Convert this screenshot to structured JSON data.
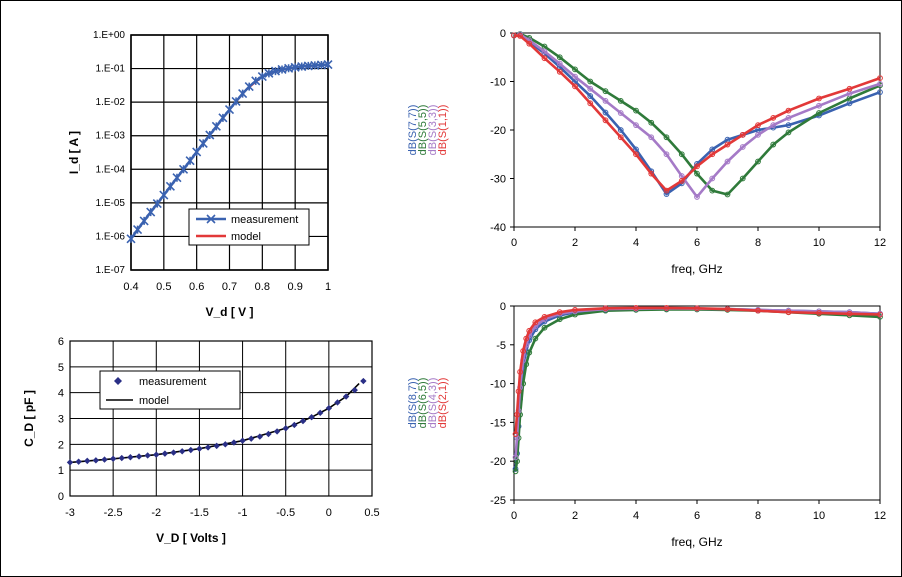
{
  "colors": {
    "s77": "#3a62b0",
    "s55": "#2f7a3a",
    "s33": "#a57ac7",
    "s11": "#e23838",
    "cap_marker": "#2a2f86",
    "model_black": "#000000",
    "frame": "#000000",
    "grid": "#000000"
  },
  "chart_data": [
    {
      "id": "iv",
      "type": "line",
      "xlabel": "V_d [ V ]",
      "ylabel": "I_d [ A ]",
      "xlim": [
        0.4,
        1.0
      ],
      "ylim": [
        1e-07,
        1.0
      ],
      "log_y": true,
      "grid": true,
      "x_ticks": [
        "0.4",
        "0.5",
        "0.6",
        "0.7",
        "0.8",
        "0.9",
        "1"
      ],
      "y_ticks": [
        "1.E-07",
        "1.E-06",
        "1.E-05",
        "1.E-04",
        "1.E-03",
        "1.E-02",
        "1.E-01",
        "1.E+00"
      ],
      "legend": {
        "placement": "bottom-right",
        "entries": [
          "measurement",
          "model"
        ]
      },
      "series": [
        {
          "name": "measurement",
          "marker": "x",
          "x": [
            0.4,
            0.42,
            0.44,
            0.46,
            0.48,
            0.5,
            0.52,
            0.54,
            0.56,
            0.58,
            0.6,
            0.62,
            0.64,
            0.66,
            0.68,
            0.7,
            0.72,
            0.74,
            0.76,
            0.78,
            0.8,
            0.82,
            0.84,
            0.86,
            0.88,
            0.9,
            0.92,
            0.94,
            0.96,
            0.98,
            1.0
          ],
          "y": [
            8.5e-07,
            1.6e-06,
            2.9e-06,
            5.3e-06,
            9.5e-06,
            1.7e-05,
            3.1e-05,
            5.6e-05,
            0.0001,
            0.00018,
            0.00033,
            0.00059,
            0.00105,
            0.0019,
            0.0034,
            0.006,
            0.0105,
            0.018,
            0.029,
            0.043,
            0.058,
            0.072,
            0.084,
            0.094,
            0.102,
            0.109,
            0.115,
            0.12,
            0.124,
            0.128,
            0.132
          ]
        },
        {
          "name": "model",
          "x": [
            0.4,
            0.45,
            0.5,
            0.55,
            0.6,
            0.65,
            0.7,
            0.75,
            0.8,
            0.85,
            0.9,
            0.95,
            1.0
          ],
          "y": [
            8.5e-07,
            4e-06,
            1.7e-05,
            7.5e-05,
            0.00033,
            0.0014,
            0.006,
            0.023,
            0.058,
            0.089,
            0.109,
            0.122,
            0.132
          ]
        }
      ]
    },
    {
      "id": "cv",
      "type": "scatter",
      "xlabel": "V_D [ Volts ]",
      "ylabel": "C_D [ pF ]",
      "xlim": [
        -3,
        0.5
      ],
      "ylim": [
        0,
        6
      ],
      "grid": true,
      "x_ticks": [
        "-3",
        "-2.5",
        "-2",
        "-1.5",
        "-1",
        "-0.5",
        "0",
        "0.5"
      ],
      "y_ticks": [
        "0",
        "1",
        "2",
        "3",
        "4",
        "5",
        "6"
      ],
      "legend": {
        "placement": "top-left",
        "entries": [
          "measurement",
          "model"
        ]
      },
      "series": [
        {
          "name": "measurement",
          "marker": "diamond",
          "x": [
            -3.0,
            -2.9,
            -2.8,
            -2.7,
            -2.6,
            -2.5,
            -2.4,
            -2.3,
            -2.2,
            -2.1,
            -2.0,
            -1.9,
            -1.8,
            -1.7,
            -1.6,
            -1.5,
            -1.4,
            -1.3,
            -1.2,
            -1.1,
            -1.0,
            -0.9,
            -0.8,
            -0.7,
            -0.6,
            -0.5,
            -0.4,
            -0.3,
            -0.2,
            -0.1,
            0.0,
            0.1,
            0.2,
            0.3,
            0.4
          ],
          "y": [
            1.3,
            1.33,
            1.36,
            1.38,
            1.41,
            1.44,
            1.47,
            1.5,
            1.53,
            1.57,
            1.6,
            1.64,
            1.68,
            1.73,
            1.78,
            1.83,
            1.88,
            1.94,
            2.0,
            2.07,
            2.14,
            2.22,
            2.3,
            2.4,
            2.5,
            2.62,
            2.75,
            2.9,
            3.05,
            3.22,
            3.4,
            3.62,
            3.85,
            4.1,
            4.45
          ]
        },
        {
          "name": "model",
          "x": [
            -3.0,
            -2.5,
            -2.0,
            -1.5,
            -1.0,
            -0.5,
            -0.2,
            0.0,
            0.2,
            0.35
          ],
          "y": [
            1.3,
            1.44,
            1.6,
            1.83,
            2.14,
            2.62,
            3.05,
            3.4,
            3.85,
            4.35
          ]
        }
      ]
    },
    {
      "id": "s_reflect",
      "type": "line",
      "xlabel": "freq, GHz",
      "ylabel": "",
      "xlim": [
        0,
        12
      ],
      "ylim": [
        -40,
        0
      ],
      "grid": false,
      "x_ticks": [
        "0",
        "2",
        "4",
        "6",
        "8",
        "10",
        "12"
      ],
      "y_ticks": [
        "-40",
        "-30",
        "-20",
        "-10",
        "0"
      ],
      "legend": {
        "placement": "left-vertical",
        "entries": [
          "dB(S(7,7))",
          "dB(S(5,5))",
          "dB(S(3,3))",
          "dB(S(1,1))"
        ]
      },
      "series": [
        {
          "name": "dB(S(7,7))",
          "x": [
            0,
            0.2,
            0.5,
            1,
            1.5,
            2,
            2.5,
            3,
            3.5,
            4,
            4.5,
            5,
            5.5,
            6,
            6.5,
            7,
            7.5,
            8,
            8.5,
            9,
            10,
            11,
            12
          ],
          "y": [
            -0.5,
            -0.3,
            -1.8,
            -4.2,
            -7.0,
            -10.0,
            -13.0,
            -16.4,
            -20.0,
            -24.0,
            -28.5,
            -33.2,
            -31.0,
            -27.0,
            -24.0,
            -22.0,
            -21.0,
            -20.0,
            -19.5,
            -19.0,
            -17.0,
            -14.5,
            -12.2
          ]
        },
        {
          "name": "dB(S(5,5))",
          "x": [
            0,
            0.2,
            0.5,
            1,
            1.5,
            2,
            2.5,
            3,
            3.5,
            4,
            4.5,
            5,
            5.5,
            6,
            6.5,
            7,
            7.5,
            8,
            8.5,
            9,
            10,
            11,
            12
          ],
          "y": [
            -0.5,
            -0.2,
            -1.0,
            -2.8,
            -5.0,
            -7.5,
            -10.0,
            -12.0,
            -14.0,
            -16.0,
            -18.5,
            -21.5,
            -25.0,
            -29.0,
            -32.5,
            -33.3,
            -30.0,
            -26.5,
            -23.0,
            -20.5,
            -16.5,
            -13.5,
            -10.8
          ]
        },
        {
          "name": "dB(S(3,3))",
          "x": [
            0,
            0.2,
            0.5,
            1,
            1.5,
            2,
            2.5,
            3,
            3.5,
            4,
            4.5,
            5,
            5.5,
            6,
            6.5,
            7,
            7.5,
            8,
            8.5,
            9,
            10,
            11,
            12
          ],
          "y": [
            -0.5,
            -0.3,
            -1.5,
            -3.8,
            -6.3,
            -9.0,
            -11.5,
            -14.0,
            -16.5,
            -19.0,
            -21.5,
            -25.0,
            -29.5,
            -33.8,
            -30.0,
            -26.5,
            -23.5,
            -21.0,
            -19.0,
            -17.5,
            -15.0,
            -12.5,
            -10.5
          ]
        },
        {
          "name": "dB(S(1,1))",
          "x": [
            0,
            0.2,
            0.5,
            1,
            1.5,
            2,
            2.5,
            3,
            3.5,
            4,
            4.5,
            5,
            5.5,
            6,
            6.5,
            7,
            7.5,
            8,
            8.5,
            9,
            10,
            11,
            12
          ],
          "y": [
            -0.5,
            -0.6,
            -2.2,
            -5.2,
            -8.0,
            -11.0,
            -14.5,
            -18.0,
            -21.5,
            -25.0,
            -29.0,
            -32.5,
            -30.5,
            -27.5,
            -25.0,
            -23.0,
            -21.0,
            -19.0,
            -17.5,
            -16.0,
            -13.5,
            -11.5,
            -9.3
          ]
        }
      ]
    },
    {
      "id": "s_trans",
      "type": "line",
      "xlabel": "freq, GHz",
      "ylabel": "",
      "xlim": [
        0,
        12
      ],
      "ylim": [
        -25,
        0
      ],
      "grid": false,
      "x_ticks": [
        "0",
        "2",
        "4",
        "6",
        "8",
        "10",
        "12"
      ],
      "y_ticks": [
        "-25",
        "-20",
        "-15",
        "-10",
        "-5",
        "0"
      ],
      "legend": {
        "placement": "left-vertical",
        "entries": [
          "dB(S(8,7))",
          "dB(S(6,5))",
          "dB(S(4,3))",
          "dB(S(2,1))"
        ]
      },
      "series": [
        {
          "name": "dB(S(8,7))",
          "x": [
            0.05,
            0.1,
            0.15,
            0.2,
            0.3,
            0.4,
            0.5,
            0.7,
            1,
            1.5,
            2,
            3,
            4,
            5,
            6,
            7,
            8,
            9,
            10,
            11,
            12
          ],
          "y": [
            -21.0,
            -19.0,
            -15.5,
            -12.0,
            -8.0,
            -5.8,
            -4.4,
            -3.0,
            -2.0,
            -1.2,
            -0.8,
            -0.5,
            -0.4,
            -0.35,
            -0.35,
            -0.4,
            -0.5,
            -0.6,
            -0.7,
            -0.8,
            -1.0
          ]
        },
        {
          "name": "dB(S(6,5))",
          "x": [
            0.05,
            0.1,
            0.15,
            0.2,
            0.3,
            0.4,
            0.5,
            0.7,
            1,
            1.5,
            2,
            3,
            4,
            5,
            6,
            7,
            8,
            9,
            10,
            11,
            12
          ],
          "y": [
            -21.3,
            -20.0,
            -17.0,
            -14.0,
            -10.0,
            -7.5,
            -6.0,
            -4.2,
            -2.8,
            -1.7,
            -1.1,
            -0.6,
            -0.5,
            -0.45,
            -0.45,
            -0.5,
            -0.6,
            -0.8,
            -1.0,
            -1.2,
            -1.4
          ]
        },
        {
          "name": "dB(S(4,3))",
          "x": [
            0.05,
            0.1,
            0.15,
            0.2,
            0.3,
            0.4,
            0.5,
            0.7,
            1,
            1.5,
            2,
            3,
            4,
            5,
            6,
            7,
            8,
            9,
            10,
            11,
            12
          ],
          "y": [
            -19.5,
            -17.0,
            -13.5,
            -10.5,
            -7.0,
            -5.0,
            -3.8,
            -2.6,
            -1.7,
            -1.0,
            -0.7,
            -0.4,
            -0.35,
            -0.3,
            -0.35,
            -0.4,
            -0.5,
            -0.6,
            -0.7,
            -0.8,
            -1.0
          ]
        },
        {
          "name": "dB(S(2,1))",
          "x": [
            0.05,
            0.1,
            0.15,
            0.2,
            0.3,
            0.4,
            0.5,
            0.7,
            1,
            1.5,
            2,
            3,
            4,
            5,
            6,
            7,
            8,
            9,
            10,
            11,
            12
          ],
          "y": [
            -16.5,
            -14.0,
            -11.0,
            -8.5,
            -5.8,
            -4.2,
            -3.2,
            -2.1,
            -1.4,
            -0.8,
            -0.5,
            -0.3,
            -0.25,
            -0.25,
            -0.3,
            -0.4,
            -0.6,
            -0.8,
            -0.9,
            -1.0,
            -1.1
          ]
        }
      ]
    }
  ]
}
